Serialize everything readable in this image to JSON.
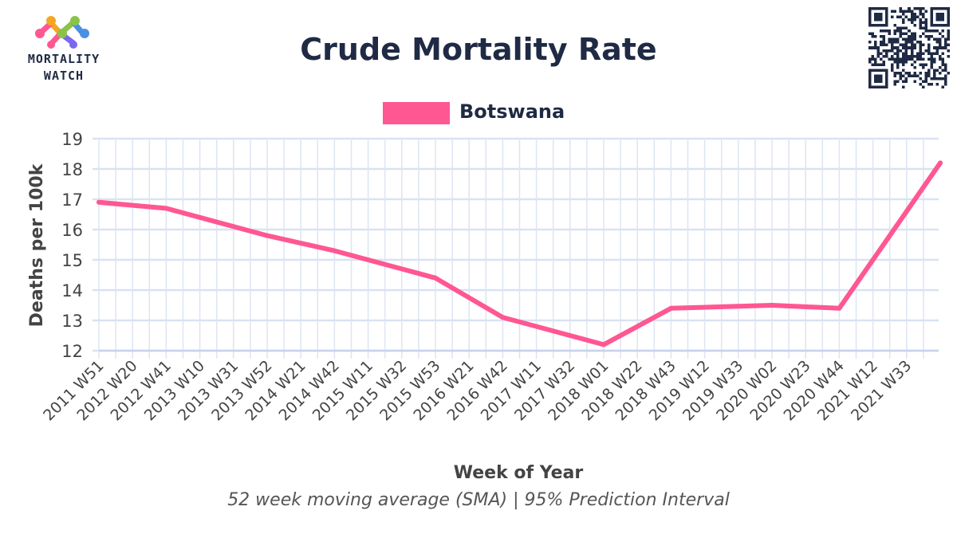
{
  "logo": {
    "line1": "MORTALITY",
    "line2": "WATCH"
  },
  "chart_data": {
    "type": "line",
    "title": "Crude Mortality Rate",
    "subtitle": "52 week moving average (SMA) | 95% Prediction Interval",
    "xlabel": "Week of Year",
    "ylabel": "Deaths per 100k",
    "ylim": [
      12,
      19
    ],
    "yticks": [
      12,
      13,
      14,
      15,
      16,
      17,
      18,
      19
    ],
    "grid": true,
    "legend_position": "top-center",
    "categories": [
      "2011 W51",
      "2012 W20",
      "2012 W41",
      "2013 W10",
      "2013 W31",
      "2013 W52",
      "2014 W21",
      "2014 W42",
      "2015 W11",
      "2015 W32",
      "2015 W53",
      "2016 W21",
      "2016 W42",
      "2017 W11",
      "2017 W32",
      "2018 W01",
      "2018 W22",
      "2018 W43",
      "2019 W12",
      "2019 W33",
      "2020 W02",
      "2020 W23",
      "2020 W44",
      "2021 W12",
      "2021 W33"
    ],
    "series": [
      {
        "name": "Botswana",
        "color": "#ff5792",
        "points": [
          {
            "x": "2011 W51",
            "y": 16.9
          },
          {
            "x": "2012 W41",
            "y": 16.7
          },
          {
            "x": "2013 W52",
            "y": 15.8
          },
          {
            "x": "2014 W42",
            "y": 15.3
          },
          {
            "x": "2015 W53",
            "y": 14.4
          },
          {
            "x": "2016 W42",
            "y": 13.1
          },
          {
            "x": "2018 W01",
            "y": 12.2
          },
          {
            "x": "2018 W43",
            "y": 13.4
          },
          {
            "x": "2020 W02",
            "y": 13.5
          },
          {
            "x": "2020 W44",
            "y": 13.4
          },
          {
            "x": "2021 W33",
            "y": 18.2
          }
        ]
      }
    ]
  }
}
